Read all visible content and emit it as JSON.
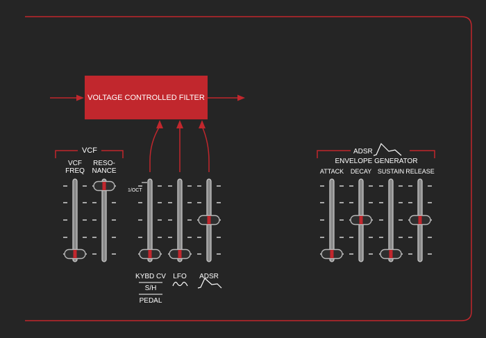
{
  "colors": {
    "background": "#252525",
    "accent_red": "#c1272d",
    "slider_knob_red": "#c1272d",
    "text": "#ffffff",
    "track": "#d0d0d0"
  },
  "vcf_box": {
    "label": "VOLTAGE CONTROLLED FILTER"
  },
  "vcf_group": {
    "title": "VCF",
    "sliders": [
      {
        "label_lines": [
          "VCF",
          "FREQ"
        ],
        "level": 0.0
      },
      {
        "label_lines": [
          "RESO-",
          "NANCE"
        ],
        "level": 1.0
      }
    ]
  },
  "mod_group": {
    "scale_label": "1/OCT",
    "sliders": [
      {
        "source": "KYBD CV",
        "level": 0.0
      },
      {
        "source": "LFO",
        "level": 0.0
      },
      {
        "source": "ADSR",
        "level": 0.5
      }
    ],
    "kybd_options": [
      "KYBD CV",
      "S/H",
      "PEDAL"
    ],
    "lfo_label": "LFO",
    "adsr_label": "ADSR",
    "lfo_icon": "sine-wave-icon",
    "adsr_icon": "adsr-envelope-icon"
  },
  "envelope_group": {
    "title": "ADSR",
    "subtitle": "ENVELOPE GENERATOR",
    "title_icon": "adsr-envelope-icon",
    "sliders": [
      {
        "label": "ATTACK",
        "level": 0.0
      },
      {
        "label": "DECAY",
        "level": 0.5
      },
      {
        "label": "SUSTAIN",
        "level": 0.0
      },
      {
        "label": "RELEASE",
        "level": 0.5
      }
    ]
  }
}
